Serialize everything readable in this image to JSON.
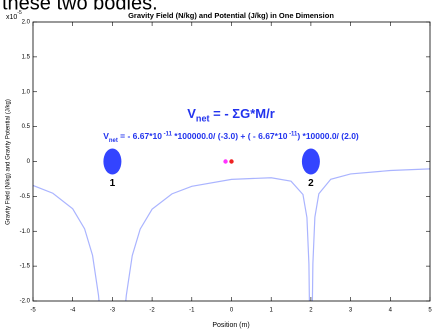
{
  "caption": "these two bodies.",
  "chart_data": {
    "type": "line",
    "title": "Gravity Field (N/kg) and Potential (J/kg) in One Dimension",
    "xlabel": "Position (m)",
    "ylabel": "Gravity Field (N/kg) and Gravity Potential (J/kg)",
    "y_multiplier": {
      "base": "x10",
      "exponent": "-5"
    },
    "x": [
      -5,
      -4.5,
      -4,
      -3.7,
      -3.5,
      -3.35,
      -3.3,
      -2.7,
      -2.65,
      -2.5,
      -2.3,
      -2,
      -1.5,
      -1,
      0,
      1,
      1.5,
      1.8,
      1.9,
      1.95,
      1.97,
      2.03,
      2.05,
      2.1,
      2.2,
      2.5,
      3,
      4,
      5
    ],
    "values": [
      -0.343,
      -0.455,
      -0.678,
      -0.965,
      -1.346,
      -1.918,
      -2.236,
      -2.237,
      -1.92,
      -1.349,
      -0.969,
      -0.684,
      -0.464,
      -0.356,
      -0.256,
      -0.233,
      -0.282,
      -0.473,
      -0.803,
      -1.469,
      -2.357,
      -2.356,
      -1.467,
      -0.798,
      -0.462,
      -0.255,
      -0.178,
      -0.129,
      -0.106
    ],
    "color": "#aab4ff",
    "xlim": [
      -5,
      5
    ],
    "xticks": [
      -5,
      -4,
      -3,
      -2,
      -1,
      0,
      1,
      2,
      3,
      4,
      5
    ],
    "ylim": [
      -2,
      2
    ],
    "yticks": [
      {
        "value": 2,
        "label": "2.0"
      },
      1.5,
      {
        "value": 1,
        "label": "1.0"
      },
      0.5,
      0,
      -0.5,
      {
        "value": -1,
        "label": "-1.0"
      },
      -1.5,
      {
        "value": -2,
        "label": "-2.0"
      }
    ],
    "bodies": [
      {
        "label": "1",
        "x": -3,
        "y": 0,
        "color": "#3344ff"
      },
      {
        "label": "2",
        "x": 2,
        "y": 0,
        "color": "#3344ff"
      }
    ],
    "probes": [
      {
        "x": -0.15,
        "y": 0,
        "color": "#ff33ff"
      },
      {
        "x": 0,
        "y": 0,
        "color": "#ee2222"
      }
    ],
    "formula_1": [
      "V",
      "net",
      " = - ΣG*M/r"
    ],
    "formula_2": [
      "V",
      "net",
      " = - 6.67*10",
      " -11",
      " *100000.0/ (-3.0) + ( - 6.67*10",
      " -11",
      ") *10000.0/ (2.0)"
    ]
  }
}
